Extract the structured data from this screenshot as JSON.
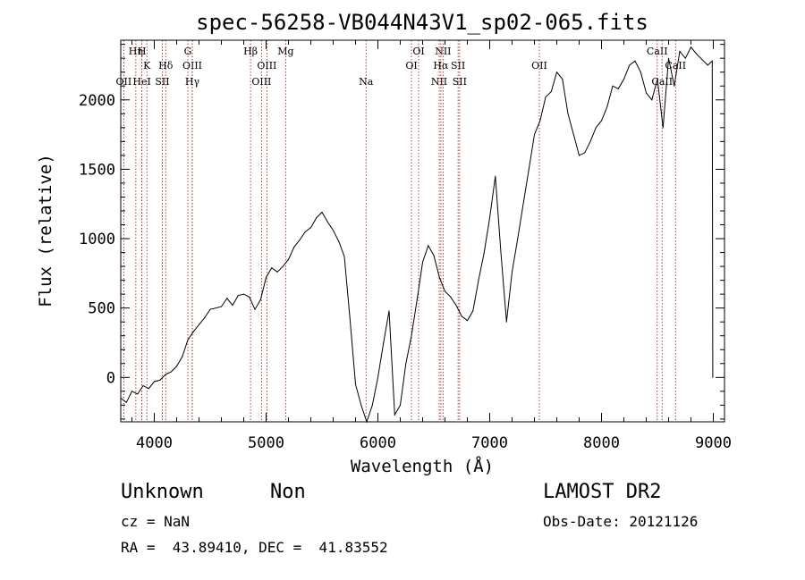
{
  "chart_data": {
    "type": "line",
    "title": "spec-56258-VB044N43V1_sp02-065.fits",
    "xlabel": "Wavelength (Å)",
    "ylabel": "Flux (relative)",
    "xlim": [
      3700,
      9100
    ],
    "ylim": [
      -320,
      2430
    ],
    "xticks": [
      4000,
      5000,
      6000,
      7000,
      8000,
      9000
    ],
    "xtick_labels": [
      "4000",
      "5000",
      "6000",
      "7000",
      "8000",
      "9000"
    ],
    "yticks": [
      0,
      500,
      1000,
      1500,
      2000
    ],
    "ytick_labels": [
      "0",
      "500",
      "1000",
      "1500",
      "2000"
    ],
    "grid": false,
    "series": [
      {
        "color": "#000000",
        "x": [
          3700,
          3750,
          3800,
          3850,
          3900,
          3950,
          4000,
          4050,
          4100,
          4150,
          4200,
          4250,
          4300,
          4350,
          4400,
          4450,
          4500,
          4550,
          4600,
          4650,
          4700,
          4750,
          4800,
          4850,
          4900,
          4950,
          5000,
          5050,
          5100,
          5150,
          5200,
          5250,
          5300,
          5350,
          5400,
          5450,
          5500,
          5550,
          5600,
          5650,
          5700,
          5750,
          5800,
          5850,
          5900,
          5950,
          6000,
          6050,
          6100,
          6150,
          6200,
          6250,
          6300,
          6350,
          6400,
          6450,
          6500,
          6550,
          6600,
          6650,
          6700,
          6750,
          6800,
          6850,
          6900,
          6950,
          7000,
          7050,
          7100,
          7150,
          7200,
          7250,
          7300,
          7350,
          7400,
          7450,
          7500,
          7550,
          7600,
          7650,
          7700,
          7750,
          7800,
          7850,
          7900,
          7950,
          8000,
          8050,
          8100,
          8150,
          8200,
          8250,
          8300,
          8350,
          8400,
          8450,
          8500,
          8550,
          8600,
          8650,
          8700,
          8750,
          8800,
          8850,
          8900,
          8950,
          8990,
          8995
        ],
        "y": [
          -150,
          -180,
          -100,
          -120,
          -60,
          -80,
          -30,
          -20,
          20,
          40,
          80,
          150,
          270,
          330,
          380,
          430,
          490,
          500,
          510,
          570,
          520,
          590,
          600,
          580,
          490,
          560,
          720,
          790,
          760,
          800,
          850,
          940,
          990,
          1050,
          1080,
          1150,
          1190,
          1120,
          1060,
          980,
          870,
          420,
          -50,
          -200,
          -320,
          -200,
          0,
          250,
          480,
          -270,
          -200,
          100,
          300,
          560,
          830,
          950,
          880,
          720,
          620,
          580,
          520,
          440,
          410,
          480,
          700,
          900,
          1150,
          1450,
          900,
          400,
          760,
          1000,
          1250,
          1500,
          1750,
          1850,
          2020,
          2060,
          2200,
          2150,
          1900,
          1750,
          1600,
          1620,
          1700,
          1800,
          1850,
          1950,
          2100,
          2080,
          2150,
          2250,
          2280,
          2200,
          2050,
          2000,
          2150,
          1800,
          2300,
          2100,
          2350,
          2300,
          2380,
          2330,
          2290,
          2250,
          2280,
          0
        ]
      }
    ],
    "spectral_lines": [
      {
        "label": "OII",
        "x": 3727,
        "row": 3
      },
      {
        "label": "Hη",
        "x": 3835,
        "row": 1
      },
      {
        "label": "H",
        "x": 3889,
        "row": 1
      },
      {
        "label": "HeI",
        "x": 3889,
        "row": 3
      },
      {
        "label": "K",
        "x": 3934,
        "row": 2
      },
      {
        "label": "SII",
        "x": 4072,
        "row": 3
      },
      {
        "label": "Hδ",
        "x": 4102,
        "row": 2
      },
      {
        "label": "G",
        "x": 4300,
        "row": 1
      },
      {
        "label": "OIII",
        "x": 4340,
        "row": 2
      },
      {
        "label": "Hγ",
        "x": 4340,
        "row": 3
      },
      {
        "label": "Hβ",
        "x": 4861,
        "row": 1
      },
      {
        "label": "OIII",
        "x": 4959,
        "row": 3
      },
      {
        "label": "OIII",
        "x": 5007,
        "row": 2
      },
      {
        "label": "Mg",
        "x": 5175,
        "row": 1
      },
      {
        "label": "Na",
        "x": 5894,
        "row": 3
      },
      {
        "label": "OI",
        "x": 6300,
        "row": 2
      },
      {
        "label": "OI",
        "x": 6364,
        "row": 1
      },
      {
        "label": "NII",
        "x": 6548,
        "row": 3
      },
      {
        "label": "NII",
        "x": 6583,
        "row": 1
      },
      {
        "label": "Hα",
        "x": 6563,
        "row": 2
      },
      {
        "label": "SII",
        "x": 6717,
        "row": 2
      },
      {
        "label": "SII",
        "x": 6731,
        "row": 3
      },
      {
        "label": "OII",
        "x": 7444,
        "row": 2
      },
      {
        "label": "CaII",
        "x": 8498,
        "row": 1
      },
      {
        "label": "CaII",
        "x": 8542,
        "row": 3
      },
      {
        "label": "CaII",
        "x": 8662,
        "row": 2
      }
    ]
  },
  "info": {
    "class": "Unknown",
    "subclass": "Non",
    "cz": "cz = NaN",
    "radec": "RA =  43.89410, DEC =  41.83552",
    "survey": "LAMOST DR2",
    "obs_date": "Obs-Date: 20121126"
  }
}
